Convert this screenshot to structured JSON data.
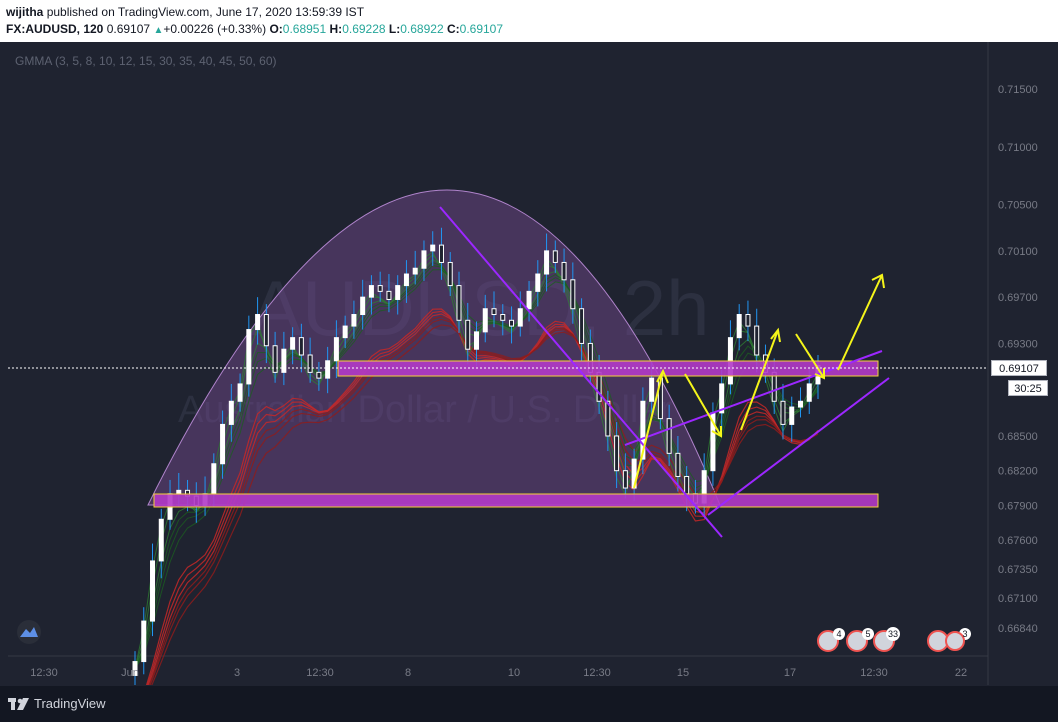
{
  "header": {
    "author": "wijitha",
    "published_text": "published on TradingView.com, June 17, 2020 13:59:39 IST",
    "symbol": "FX:AUDUSD, 120",
    "price": "0.69107",
    "change": "+0.00226 (+0.33%)",
    "o_label": "O:",
    "o_value": "0.68951",
    "h_label": "H:",
    "h_value": "0.69228",
    "l_label": "L:",
    "l_value": "0.68922",
    "c_label": "C:",
    "c_value": "0.69107"
  },
  "indicator": {
    "label": "GMMA (3, 5, 8, 10, 12, 15, 30, 35, 40, 45, 50, 60)"
  },
  "watermark": {
    "symbol": "AUDUSD, 2h",
    "name": "Australian Dollar / U.S. Dollar"
  },
  "price_axis": {
    "labels": [
      "0.71500",
      "0.71000",
      "0.70500",
      "0.70100",
      "0.69700",
      "0.69300",
      "0.68500",
      "0.68200",
      "0.67900",
      "0.67600",
      "0.67350",
      "0.67100",
      "0.66840"
    ],
    "current_price": "0.69107",
    "countdown": "30:25"
  },
  "time_axis": {
    "labels": [
      "12:30",
      "Jun",
      "3",
      "12:30",
      "8",
      "10",
      "12:30",
      "15",
      "17",
      "12:30",
      "22"
    ]
  },
  "event_badges": [
    {
      "count": "4"
    },
    {
      "count": "5"
    },
    {
      "count": "33"
    },
    {
      "count": "3"
    }
  ],
  "footer": {
    "brand": "TradingView"
  },
  "colors": {
    "background": "#1f2330",
    "zone": "#b23ac8",
    "zone_border": "#f5d13a",
    "arrow": "#f5f51a",
    "trendline": "#9c27ff",
    "arc_fill": "#7e4f9a",
    "candle_up": "#ffffff",
    "candle_down": "#ffffff",
    "wick": "#2196f3"
  },
  "chart_data": {
    "type": "candlestick",
    "title": "AUDUSD, 2h",
    "ylim": [
      0.6665,
      0.7175
    ],
    "close_series": [
      0.6655,
      0.669,
      0.6742,
      0.6778,
      0.68,
      0.6803,
      0.6798,
      0.679,
      0.68,
      0.6826,
      0.686,
      0.688,
      0.6895,
      0.6942,
      0.6955,
      0.6928,
      0.6905,
      0.6925,
      0.6935,
      0.692,
      0.6905,
      0.69,
      0.6915,
      0.6935,
      0.6945,
      0.6955,
      0.697,
      0.698,
      0.6975,
      0.6968,
      0.698,
      0.699,
      0.6995,
      0.701,
      0.7015,
      0.7,
      0.698,
      0.695,
      0.6925,
      0.694,
      0.696,
      0.6955,
      0.695,
      0.6945,
      0.696,
      0.6975,
      0.699,
      0.701,
      0.7,
      0.6985,
      0.696,
      0.693,
      0.6905,
      0.688,
      0.685,
      0.682,
      0.6805,
      0.683,
      0.688,
      0.69,
      0.6865,
      0.6835,
      0.6815,
      0.68,
      0.6792,
      0.682,
      0.687,
      0.6895,
      0.6935,
      0.6955,
      0.6945,
      0.692,
      0.6905,
      0.688,
      0.686,
      0.6875,
      0.688,
      0.6895,
      0.6911
    ]
  }
}
